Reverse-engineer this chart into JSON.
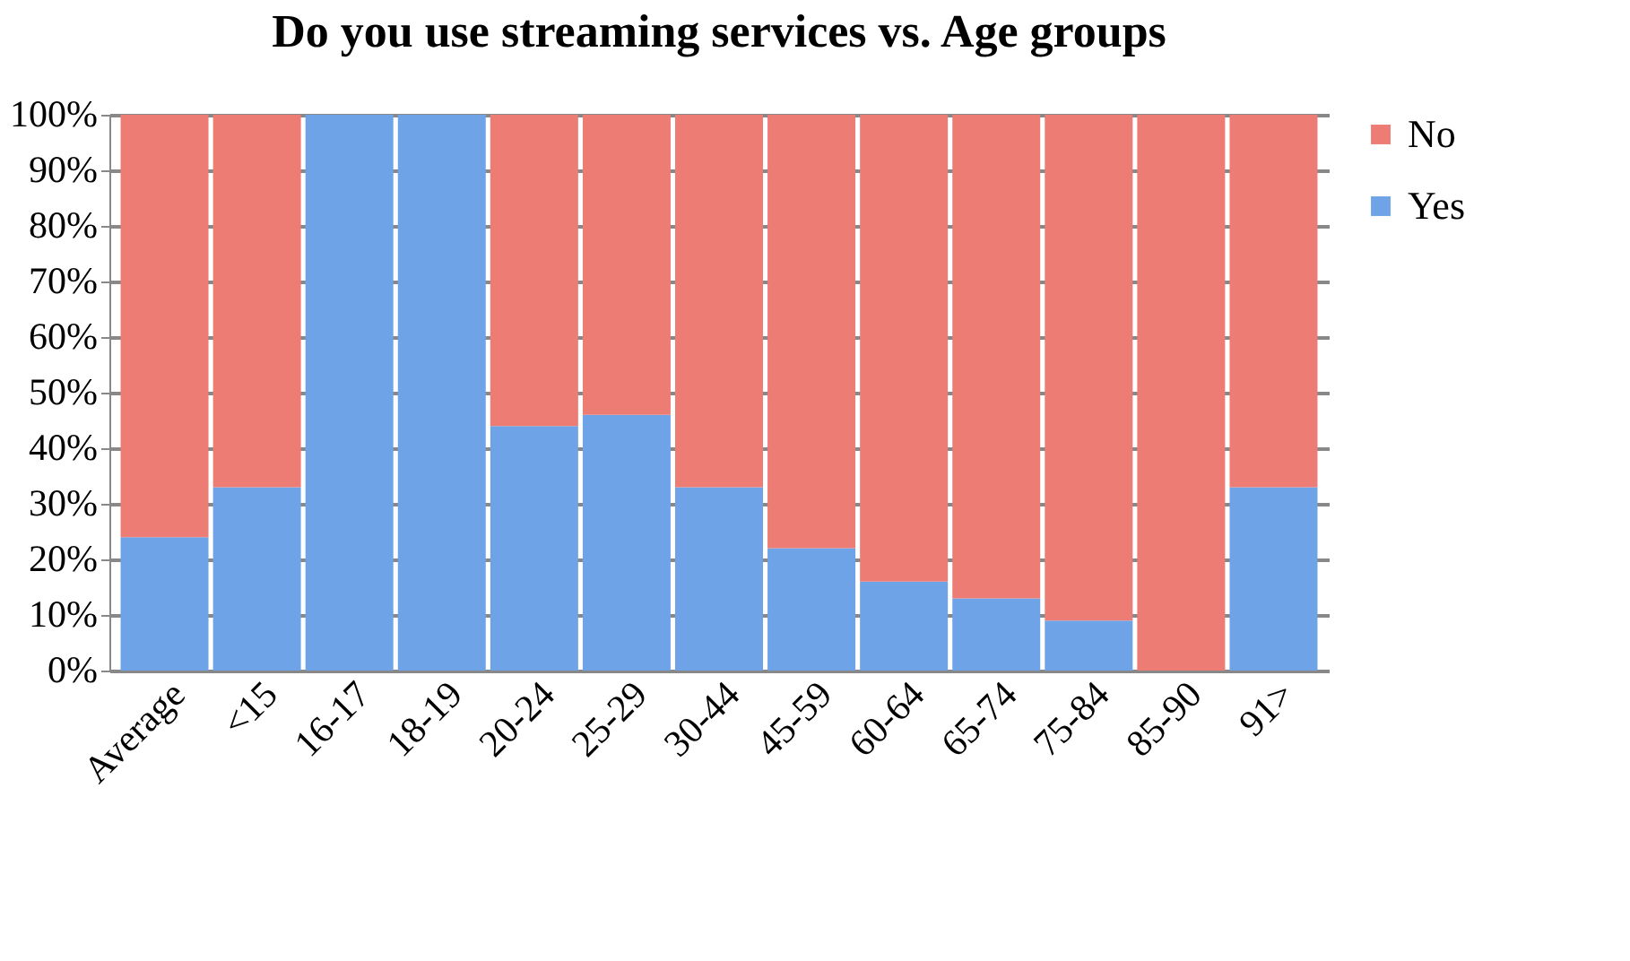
{
  "chart_data": {
    "type": "bar",
    "stacked": true,
    "title": "Do you use streaming services vs. Age groups",
    "categories": [
      "Average",
      "<15",
      "16-17",
      "18-19",
      "20-24",
      "25-29",
      "30-44",
      "45-59",
      "60-64",
      "65-74",
      "75-84",
      "85-90",
      "91>"
    ],
    "series": [
      {
        "name": "Yes",
        "color": "#6fa3e8",
        "values": [
          24,
          33,
          100,
          100,
          44,
          46,
          33,
          22,
          16,
          13,
          9,
          0,
          33
        ]
      },
      {
        "name": "No",
        "color": "#ec7c74",
        "values": [
          76,
          67,
          0,
          0,
          56,
          54,
          67,
          78,
          84,
          87,
          91,
          100,
          67
        ]
      }
    ],
    "ylim": [
      0,
      100
    ],
    "yticks": [
      {
        "value": 0,
        "label": "0%"
      },
      {
        "value": 10,
        "label": "10%"
      },
      {
        "value": 20,
        "label": "20%"
      },
      {
        "value": 30,
        "label": "30%"
      },
      {
        "value": 40,
        "label": "40%"
      },
      {
        "value": 50,
        "label": "50%"
      },
      {
        "value": 60,
        "label": "60%"
      },
      {
        "value": 70,
        "label": "70%"
      },
      {
        "value": 80,
        "label": "80%"
      },
      {
        "value": 90,
        "label": "90%"
      },
      {
        "value": 100,
        "label": "100%"
      }
    ],
    "grid": "y",
    "legend": "right"
  }
}
